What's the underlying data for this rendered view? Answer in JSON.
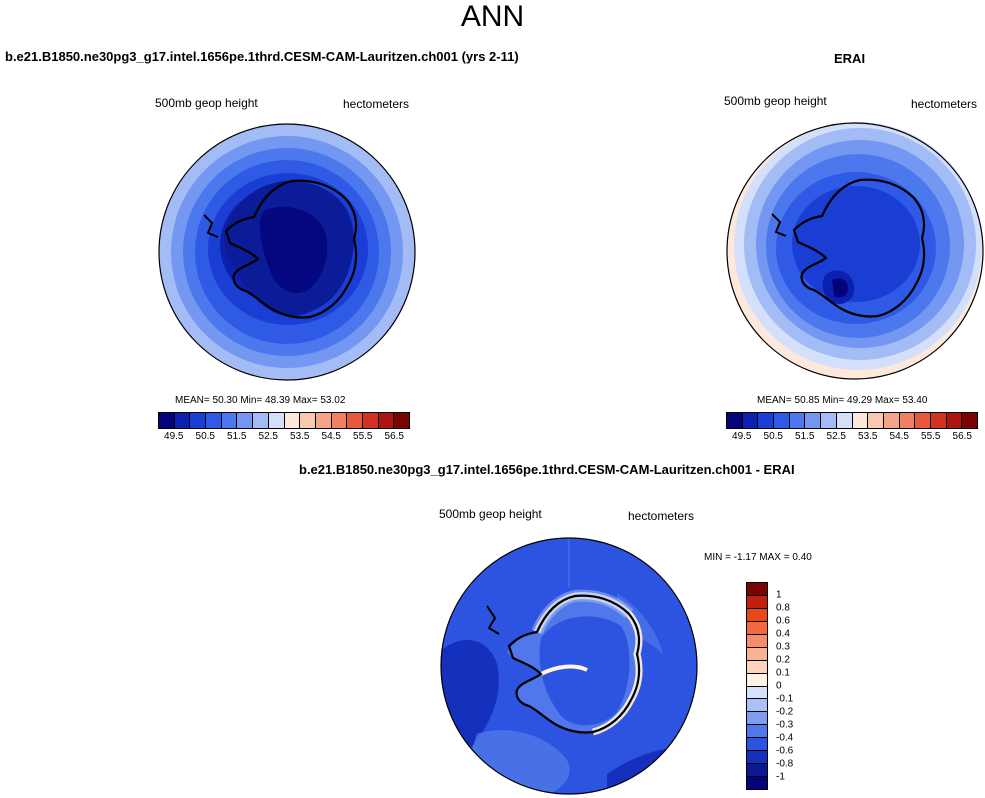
{
  "title": "ANN",
  "panels": [
    {
      "title": "b.e21.B1850.ne30pg3_g17.intel.1656pe.1thrd.CESM-CAM-Lauritzen.ch001 (yrs 2-11)",
      "variable": "500mb geop height",
      "units": "hectometers",
      "stats_text": "MEAN=  50.30  Min=  48.39  Max=  53.02",
      "mean": 50.3,
      "min": 48.39,
      "max": 53.02
    },
    {
      "title": "ERAI",
      "variable": "500mb geop height",
      "units": "hectometers",
      "stats_text": "MEAN=  50.85  Min=  49.29  Max=  53.40",
      "mean": 50.85,
      "min": 49.29,
      "max": 53.4
    },
    {
      "title": "b.e21.B1850.ne30pg3_g17.intel.1656pe.1thrd.CESM-CAM-Lauritzen.ch001 - ERAI",
      "variable": "500mb geop height",
      "units": "hectometers",
      "stats_text": "MIN =  -1.17 MAX =   0.40",
      "min": -1.17,
      "max": 0.4
    }
  ],
  "colorbar_abs": {
    "labels": [
      "49.5",
      "50.5",
      "51.5",
      "52.5",
      "53.5",
      "54.5",
      "55.5",
      "56.5"
    ],
    "colors": [
      "#04047a",
      "#0c20b0",
      "#1a3ed4",
      "#2e5ae6",
      "#4c78ee",
      "#7498f2",
      "#a4bcf6",
      "#d4e0fa",
      "#fde8dc",
      "#f8c8b0",
      "#f4a488",
      "#f08060",
      "#e8583a",
      "#d43220",
      "#ae1410",
      "#7a0404"
    ]
  },
  "colorbar_diff": {
    "labels": [
      "1",
      "0.8",
      "0.6",
      "0.4",
      "0.3",
      "0.2",
      "0.1",
      "0",
      "-0.1",
      "-0.2",
      "-0.3",
      "-0.4",
      "-0.6",
      "-0.8",
      "-1"
    ],
    "colors": [
      "#7a0404",
      "#c0200e",
      "#e84818",
      "#f06a3e",
      "#f48e68",
      "#f8b294",
      "#fcd4bc",
      "#fff4e4",
      "#d6e2fa",
      "#aac0f6",
      "#7e9cf0",
      "#5078ea",
      "#2c54e0",
      "#1430bc",
      "#0a1894",
      "#04047a"
    ]
  }
}
